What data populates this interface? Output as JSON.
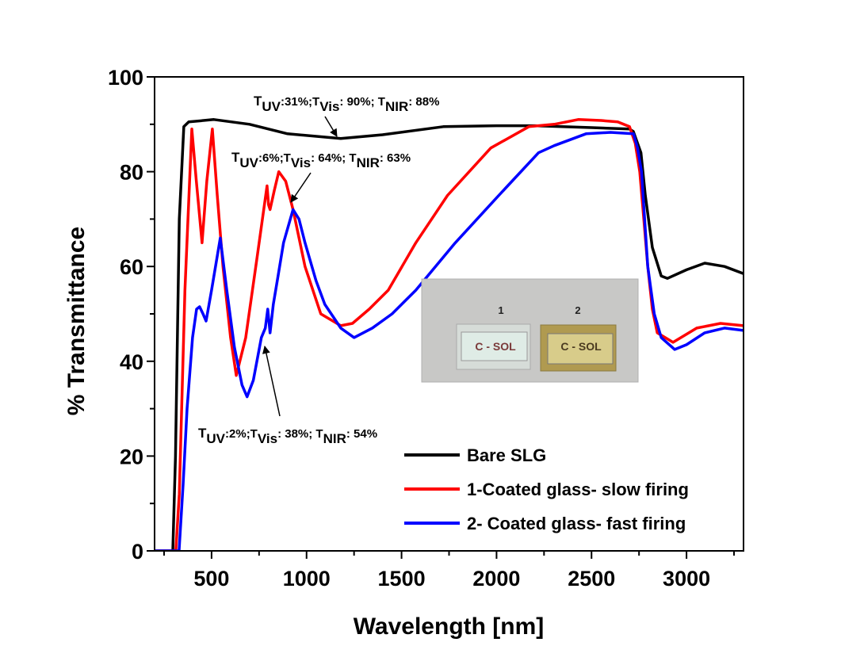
{
  "chart_data": {
    "type": "line",
    "title": "",
    "xlabel": "Wavelength [nm]",
    "ylabel": "% Transmittance",
    "xlim": [
      200,
      3300
    ],
    "ylim": [
      0,
      100
    ],
    "xticks": [
      500,
      1000,
      1500,
      2000,
      2500,
      3000
    ],
    "yticks": [
      0,
      20,
      40,
      60,
      80,
      100
    ],
    "grid": false,
    "legend_position": "bottom-right",
    "series": [
      {
        "name": "Bare SLG",
        "color": "#000000",
        "x": [
          200,
          296,
          310,
          330,
          354,
          380,
          512,
          700,
          900,
          1180,
          1400,
          1720,
          2000,
          2200,
          2500,
          2700,
          2720,
          2760,
          2783,
          2820,
          2867,
          2900,
          3000,
          3096,
          3200,
          3300
        ],
        "y": [
          0,
          0,
          20,
          70,
          89.5,
          90.5,
          91,
          90,
          88,
          87,
          87.8,
          89.5,
          89.7,
          89.7,
          89.3,
          89,
          88.5,
          84,
          75,
          64,
          58,
          57.5,
          59.3,
          60.7,
          60,
          58.5
        ]
      },
      {
        "name": "1-Coated glass- slow firing",
        "color": "#ff0000",
        "x": [
          200,
          312,
          330,
          360,
          396,
          420,
          450,
          475,
          504,
          530,
          560,
          600,
          630,
          680,
          740,
          792,
          800,
          808,
          830,
          854,
          890,
          929,
          992,
          1075,
          1180,
          1242,
          1330,
          1430,
          1575,
          1742,
          1970,
          2170,
          2304,
          2430,
          2550,
          2638,
          2700,
          2730,
          2754,
          2775,
          2796,
          2820,
          2846,
          2929,
          3054,
          3179,
          3300
        ],
        "y": [
          0,
          0,
          12,
          55,
          89,
          78,
          65,
          78,
          89,
          75,
          60,
          45,
          37,
          45,
          62,
          77,
          73,
          72,
          76,
          80,
          78,
          72,
          60,
          50,
          47.5,
          48,
          51,
          55,
          65,
          75,
          85,
          89.5,
          90,
          91,
          90.8,
          90.5,
          89.5,
          86,
          80,
          70,
          60,
          51,
          46,
          44,
          47,
          48,
          47.5
        ]
      },
      {
        "name": "2- Coated glass- fast firing",
        "color": "#0000ff",
        "x": [
          200,
          329,
          350,
          371,
          400,
          421,
          437,
          455,
          471,
          500,
          546,
          580,
          620,
          660,
          687,
          720,
          762,
          783,
          796,
          808,
          825,
          850,
          879,
          929,
          960,
          992,
          1050,
          1096,
          1180,
          1250,
          1346,
          1450,
          1575,
          1783,
          2012,
          2221,
          2304,
          2471,
          2600,
          2721,
          2742,
          2763,
          2796,
          2830,
          2867,
          2938,
          3000,
          3096,
          3200,
          3300
        ],
        "y": [
          0,
          0,
          14,
          30,
          45,
          51,
          51.5,
          50,
          48.5,
          55,
          66,
          55,
          43,
          35,
          32.5,
          36,
          45,
          47,
          51,
          46,
          52,
          58,
          65,
          72,
          70,
          65,
          57,
          52,
          47,
          45,
          47,
          50,
          55,
          65,
          75,
          84,
          85.5,
          88,
          88.3,
          88,
          85,
          80,
          60,
          50,
          45,
          42.5,
          43.5,
          46,
          47,
          46.5
        ]
      }
    ],
    "annotations": [
      {
        "parts": [
          [
            "T",
            ""
          ],
          [
            "UV",
            "sub"
          ],
          [
            ":31%;T",
            ""
          ],
          [
            "Vis",
            "sub"
          ],
          [
            ": 90%; T",
            ""
          ],
          [
            "NIR",
            "sub"
          ],
          [
            ": 88%",
            ""
          ]
        ]
      },
      {
        "parts": [
          [
            "T",
            ""
          ],
          [
            "UV",
            "sub"
          ],
          [
            ":6%;T",
            ""
          ],
          [
            "Vis",
            "sub"
          ],
          [
            ": 64%; T",
            ""
          ],
          [
            "NIR",
            "sub"
          ],
          [
            ": 63%",
            ""
          ]
        ]
      },
      {
        "parts": [
          [
            "T",
            ""
          ],
          [
            "UV",
            "sub"
          ],
          [
            ":2%;T",
            ""
          ],
          [
            "Vis",
            "sub"
          ],
          [
            ": 38%; T",
            ""
          ],
          [
            "NIR",
            "sub"
          ],
          [
            ": 54%",
            ""
          ]
        ]
      }
    ],
    "inset_photo": {
      "labels": [
        "1",
        "2"
      ],
      "sample_text": [
        "C - SOL",
        "C - SOL"
      ]
    }
  }
}
